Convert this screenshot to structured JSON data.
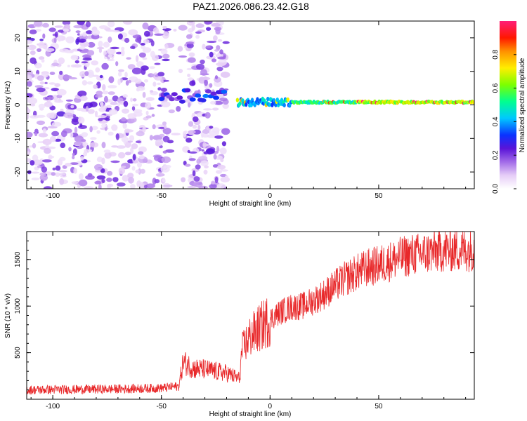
{
  "title": "PAZ1.2026.086.23.42.G18",
  "chart_data": [
    {
      "type": "heatmap",
      "xlabel": "Height of straight line (km)",
      "ylabel": "Frequency (Hz)",
      "xlim": [
        -112,
        94
      ],
      "ylim": [
        -25,
        25
      ],
      "xticks": [
        -100,
        -50,
        0,
        50
      ],
      "yticks": [
        -20,
        -10,
        0,
        10,
        20
      ],
      "colorbar": {
        "label": "Normalized spectral amplitude",
        "range": [
          0,
          1
        ],
        "ticks": [
          "0.0",
          "0.2",
          "0.4",
          "0.6",
          "0.8"
        ]
      },
      "features": [
        {
          "name": "noise",
          "x_range": [
            -112,
            -20
          ],
          "freq_range": [
            -25,
            25
          ],
          "amplitude": "0.05-0.25"
        },
        {
          "name": "signal-band",
          "x_range": [
            -50,
            -20
          ],
          "freq_center": 3,
          "amplitude": "0.2-0.4"
        },
        {
          "name": "signal-trace",
          "x_range": [
            -15,
            94
          ],
          "freq_center": 0.8,
          "amplitude": "0.3-1.0"
        }
      ]
    },
    {
      "type": "line",
      "xlabel": "Height of straight line (km)",
      "ylabel": "SNR (10 * v/v)",
      "xlim": [
        -112,
        94
      ],
      "ylim": [
        0,
        1800
      ],
      "xticks": [
        -100,
        -50,
        0,
        50
      ],
      "yticks": [
        500,
        1000,
        1500
      ],
      "series": [
        {
          "name": "SNR",
          "color": "#e8282a",
          "trend": [
            [
              -112,
              100
            ],
            [
              -90,
              105
            ],
            [
              -70,
              110
            ],
            [
              -50,
              120
            ],
            [
              -42,
              140
            ],
            [
              -40,
              400
            ],
            [
              -35,
              330
            ],
            [
              -30,
              320
            ],
            [
              -25,
              300
            ],
            [
              -20,
              280
            ],
            [
              -14,
              220
            ],
            [
              -13,
              520
            ],
            [
              -10,
              650
            ],
            [
              -5,
              760
            ],
            [
              0,
              860
            ],
            [
              5,
              940
            ],
            [
              10,
              990
            ],
            [
              15,
              1000
            ],
            [
              20,
              1060
            ],
            [
              25,
              1130
            ],
            [
              30,
              1220
            ],
            [
              35,
              1300
            ],
            [
              40,
              1360
            ],
            [
              45,
              1410
            ],
            [
              50,
              1440
            ],
            [
              55,
              1480
            ],
            [
              60,
              1520
            ],
            [
              65,
              1550
            ],
            [
              70,
              1560
            ],
            [
              75,
              1580
            ],
            [
              80,
              1600
            ],
            [
              85,
              1600
            ],
            [
              90,
              1600
            ],
            [
              94,
              1610
            ]
          ]
        }
      ]
    }
  ]
}
